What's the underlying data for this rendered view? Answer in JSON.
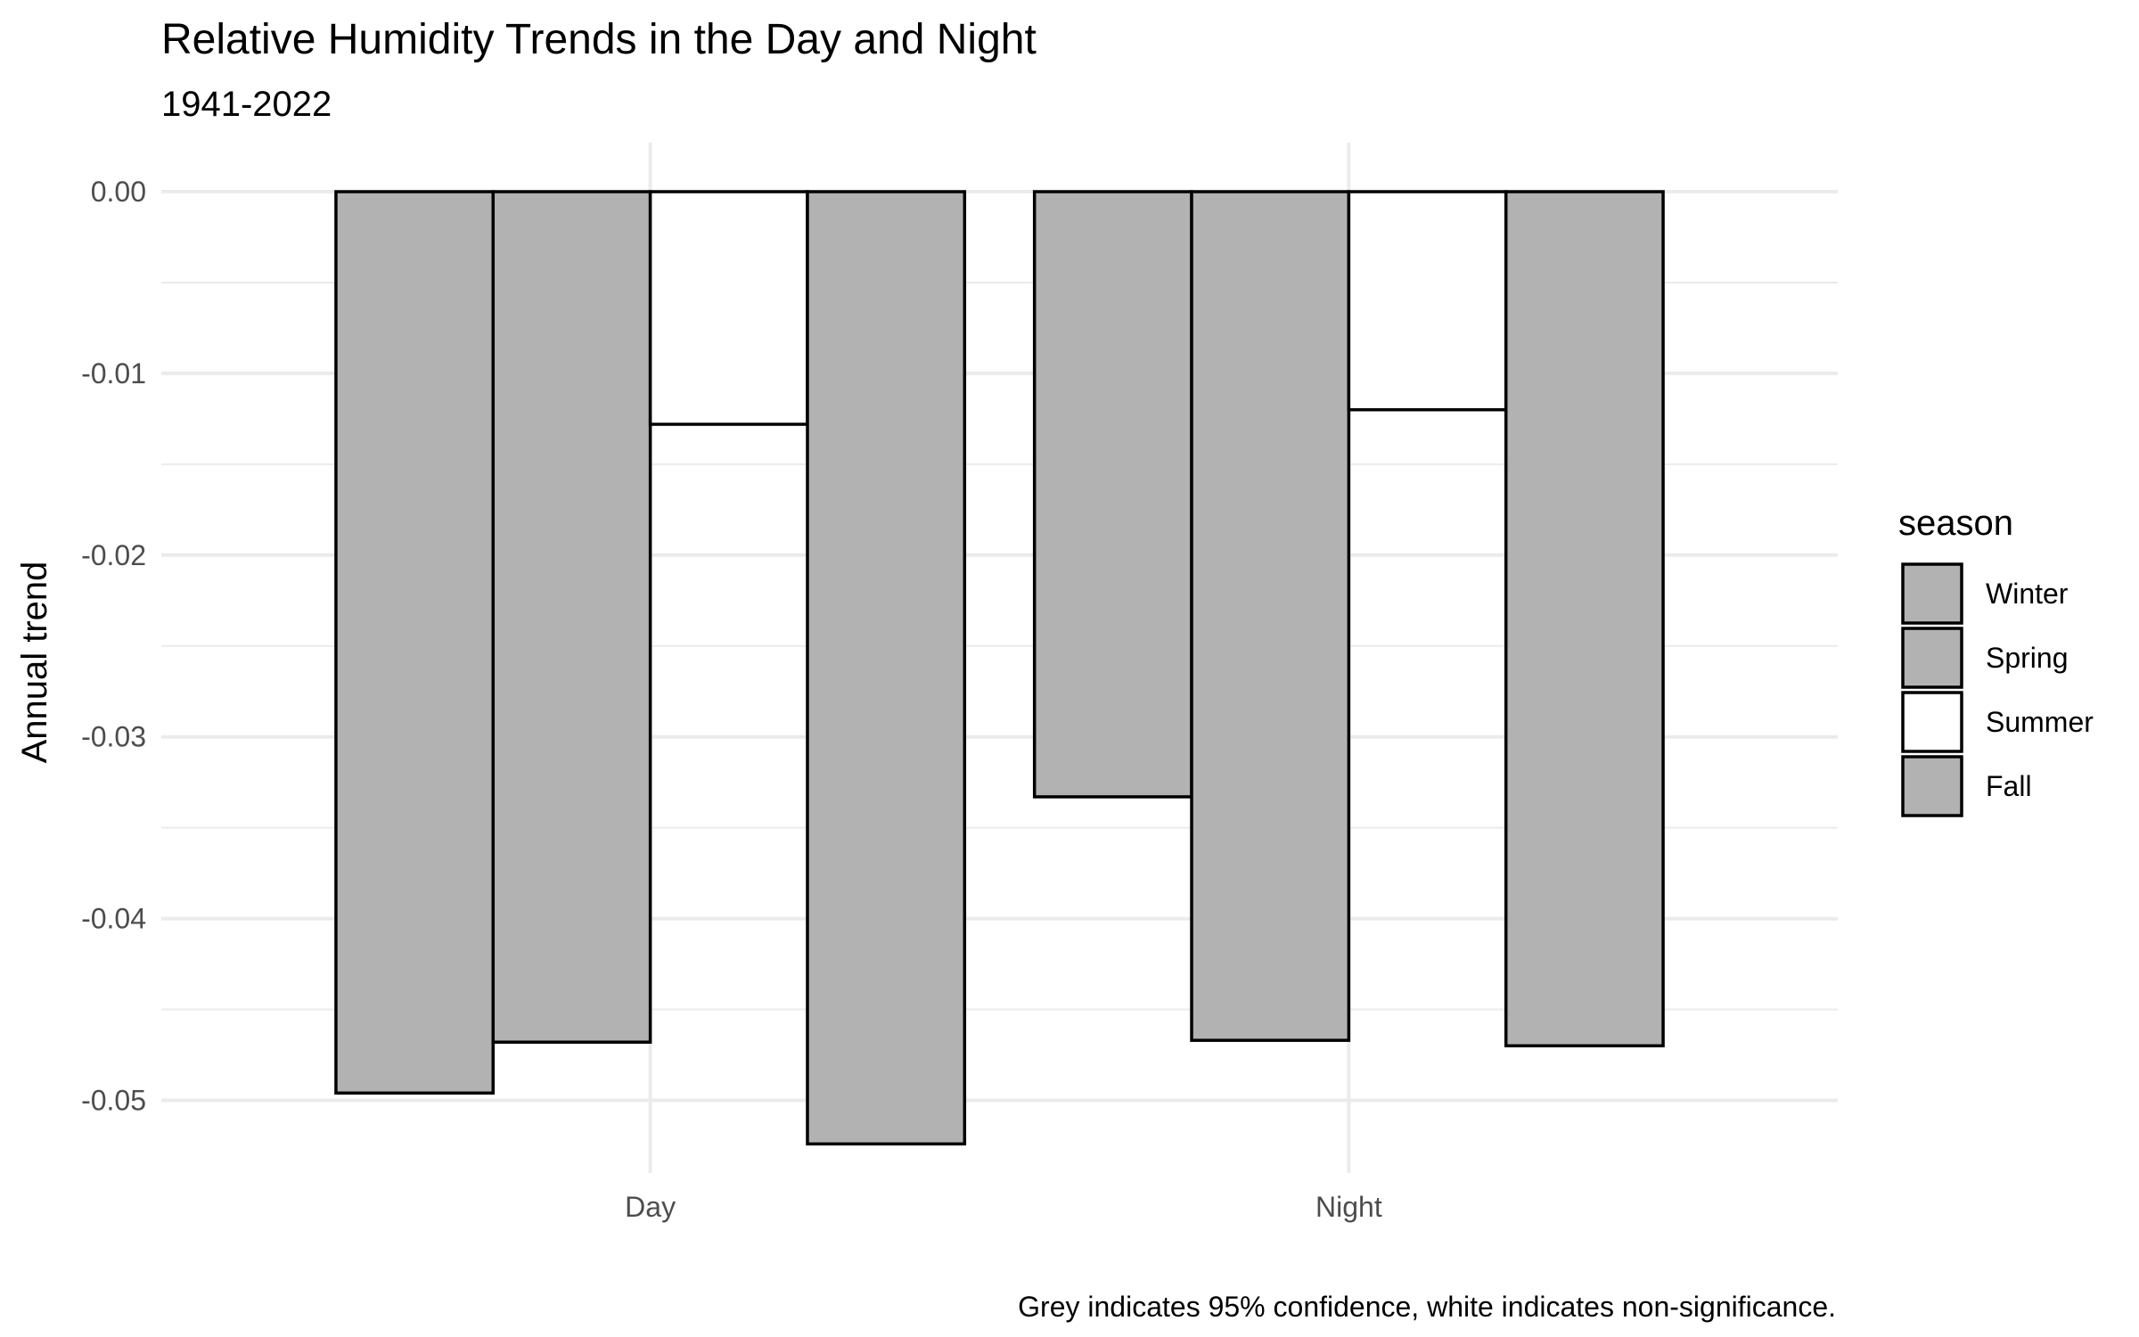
{
  "chart_data": {
    "type": "bar",
    "title": "Relative Humidity Trends in the Day and Night",
    "subtitle": "1941-2022",
    "xlabel": "",
    "ylabel": "Annual trend",
    "caption": "Grey indicates 95% confidence, white indicates non-significance.",
    "categories": [
      "Day",
      "Night"
    ],
    "ylim": [
      -0.054,
      0.0027
    ],
    "yticks": [
      "0.00",
      "-0.01",
      "-0.02",
      "-0.03",
      "-0.04",
      "-0.05"
    ],
    "ytick_values": [
      0,
      -0.01,
      -0.02,
      -0.03,
      -0.04,
      -0.05
    ],
    "grid": true,
    "legend_position": "right",
    "legend_title": "season",
    "series": [
      {
        "name": "Winter",
        "values": [
          -0.0496,
          -0.0333
        ],
        "fills": [
          "#b2b2b2",
          "#b2b2b2"
        ]
      },
      {
        "name": "Spring",
        "values": [
          -0.0468,
          -0.0467
        ],
        "fills": [
          "#b2b2b2",
          "#b2b2b2"
        ]
      },
      {
        "name": "Summer",
        "values": [
          -0.0128,
          -0.012
        ],
        "fills": [
          "#ffffff",
          "#ffffff"
        ]
      },
      {
        "name": "Fall",
        "values": [
          -0.0524,
          -0.047
        ],
        "fills": [
          "#b2b2b2",
          "#b2b2b2"
        ]
      }
    ],
    "legend_fills": [
      "#b2b2b2",
      "#b2b2b2",
      "#ffffff",
      "#b2b2b2"
    ],
    "colors": {
      "significant": "#b2b2b2",
      "non_significant": "#ffffff",
      "outline": "#000000",
      "grid": "#ebebeb"
    }
  }
}
